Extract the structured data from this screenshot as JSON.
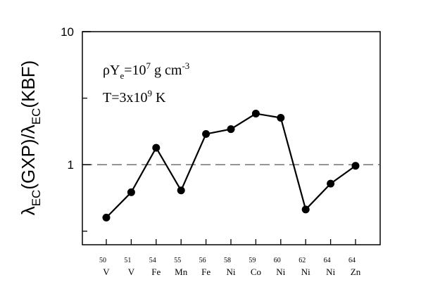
{
  "chart_data": {
    "type": "line",
    "title": "",
    "ylabel": {
      "lambda1": "λ",
      "sub1": "EC",
      "text1": "(GXP)/",
      "lambda2": "λ",
      "sub2": "EC",
      "text2": "(KBF)"
    },
    "yscale": "log",
    "ylim": [
      0.25,
      10
    ],
    "yticks": [
      {
        "value": 1,
        "label": "1"
      },
      {
        "value": 10,
        "label": "10"
      }
    ],
    "yminorticks": [
      0.3162,
      3.162
    ],
    "reference_line": {
      "value": 1,
      "style": "dashed"
    },
    "categories": [
      {
        "mass": "50",
        "element": "V"
      },
      {
        "mass": "51",
        "element": "V"
      },
      {
        "mass": "54",
        "element": "Fe"
      },
      {
        "mass": "55",
        "element": "Mn"
      },
      {
        "mass": "56",
        "element": "Fe"
      },
      {
        "mass": "58",
        "element": "Ni"
      },
      {
        "mass": "59",
        "element": "Co"
      },
      {
        "mass": "60",
        "element": "Ni"
      },
      {
        "mass": "62",
        "element": "Ni"
      },
      {
        "mass": "64",
        "element": "Ni"
      },
      {
        "mass": "64",
        "element": "Zn"
      }
    ],
    "values": [
      0.4,
      0.62,
      1.34,
      0.64,
      1.7,
      1.85,
      2.42,
      2.25,
      0.46,
      0.72,
      0.98
    ],
    "annotations": {
      "line1": {
        "rho": "ρ",
        "Y": "Y",
        "e": "e",
        "eq": "=10",
        "exp": "7",
        "unit": " g cm",
        "unit_exp": "-3"
      },
      "line2": {
        "text": "T=3x10",
        "exp": "9",
        "unit": " K"
      }
    },
    "grid": false,
    "legend": "none"
  }
}
